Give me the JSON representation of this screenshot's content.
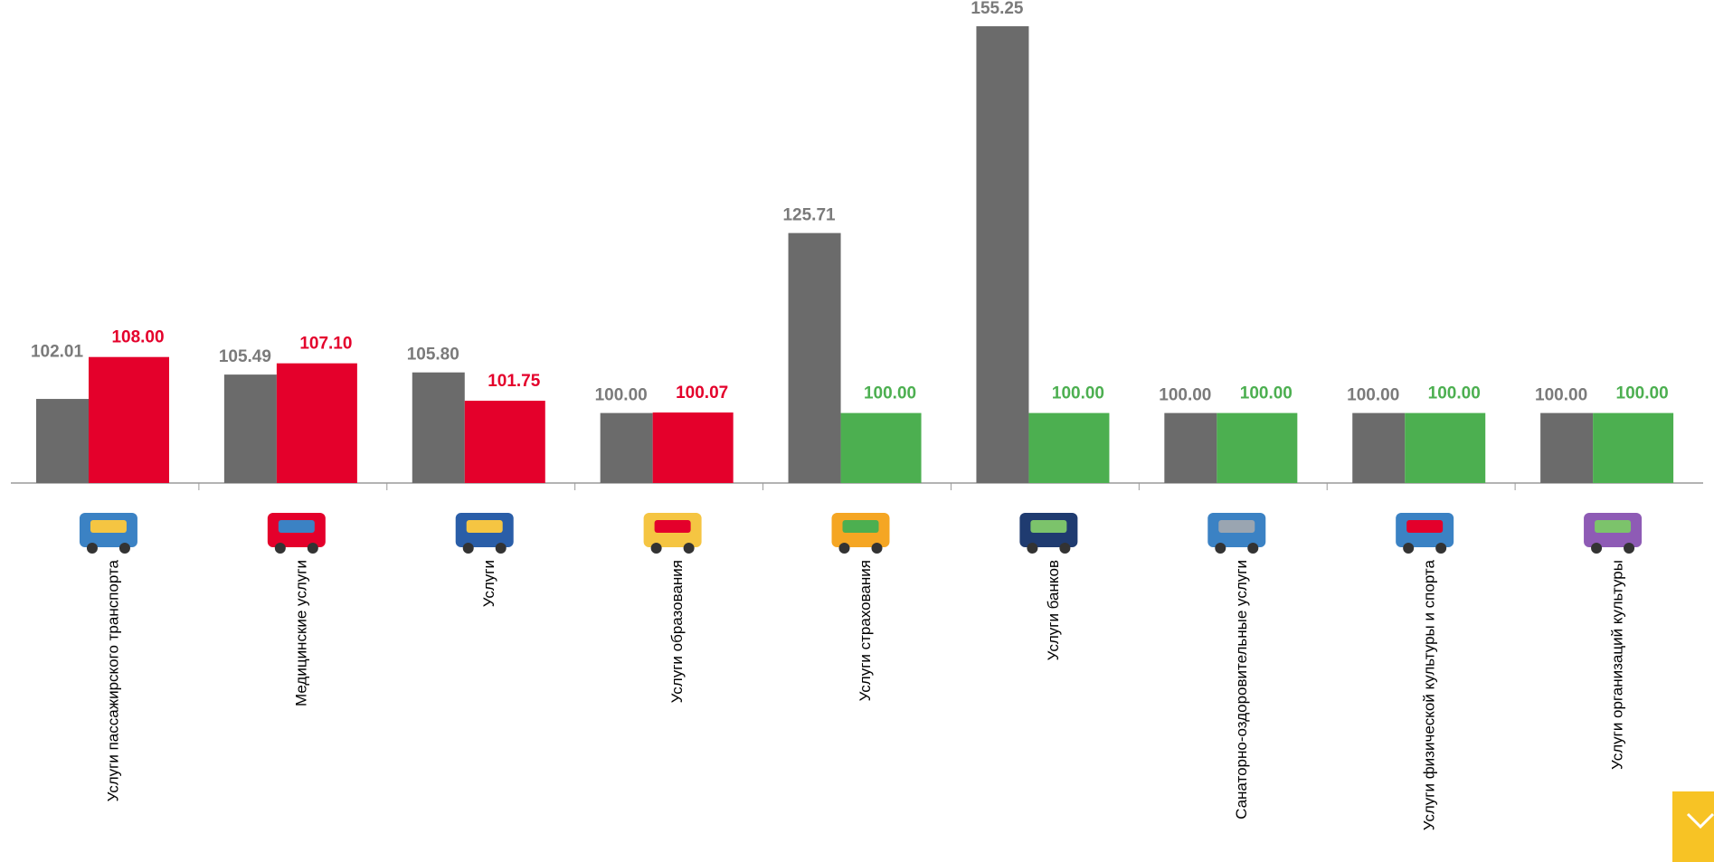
{
  "chart_data": {
    "type": "bar",
    "categories": [
      "Услуги пассажирского транспорта",
      "Медицинские услуги",
      "Услуги",
      "Услуги образования",
      "Услуги страхования",
      "Услуги банков",
      "Санаторно-оздоровительные услуги",
      "Услуги физической культуры и спорта",
      "Услуги организаций культуры"
    ],
    "series": [
      {
        "color": "#6b6b6b",
        "label_color": "#7a7a7a",
        "values": [
          102.01,
          105.49,
          105.8,
          100,
          125.71,
          155.25,
          100,
          100,
          100
        ],
        "value_labels": [
          "102.01",
          "105.49",
          "105.80",
          "100.00",
          "125.71",
          "155.25",
          "100.00",
          "100.00",
          "100.00"
        ]
      },
      {
        "colors": [
          "#e4002b",
          "#e4002b",
          "#e4002b",
          "#e4002b",
          "#4caf50",
          "#4caf50",
          "#4caf50",
          "#4caf50",
          "#4caf50"
        ],
        "values": [
          108,
          107.1,
          101.75,
          100.07,
          100,
          100,
          100,
          100,
          100
        ],
        "value_labels": [
          "108.00",
          "107.10",
          "101.75",
          "100.07",
          "100.00",
          "100.00",
          "100.00",
          "100.00",
          "100.00"
        ]
      }
    ],
    "ylim": [
      90,
      159
    ]
  }
}
